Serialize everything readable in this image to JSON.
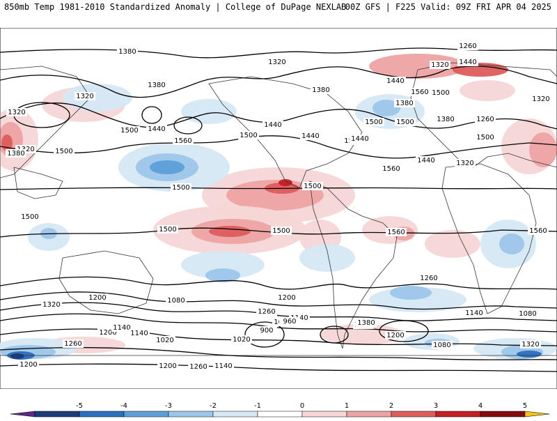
{
  "header": {
    "title_left": "850mb Temp 1981-2010 Standardized Anomaly | College of DuPage NEXLAB",
    "title_right": "00Z GFS | F225 Valid: 09Z FRI APR 04 2025"
  },
  "colorbar": {
    "tick_labels": [
      "-5",
      "-4",
      "-3",
      "-2",
      "-1",
      "0",
      "1",
      "2",
      "3",
      "4",
      "5"
    ],
    "colors": [
      "#5a2a86",
      "#1f3a7a",
      "#2c6fbd",
      "#5d9fd8",
      "#9cc6ea",
      "#d6e8f6",
      "#ffffff",
      "#f7d6d6",
      "#eda3a3",
      "#dd5c5c",
      "#c31f24",
      "#850a0e",
      "#f2c21b"
    ]
  },
  "map": {
    "ocean_color": "#ffffff",
    "land_outline_color": "#333333",
    "contour_color": "#000000",
    "contour_labels": [
      "1380",
      "1320",
      "1260",
      "1380",
      "1440",
      "1320",
      "1320",
      "1380",
      "1500",
      "1440",
      "1560",
      "1440",
      "1500",
      "1320",
      "1440",
      "1380",
      "1500",
      "1440",
      "1320",
      "1560",
      "1500",
      "1380",
      "1500",
      "1320",
      "1500",
      "1560",
      "1500",
      "1500",
      "1500",
      "1500",
      "1500",
      "1560",
      "1560",
      "1500",
      "1440",
      "1500",
      "1380",
      "1260",
      "1440",
      "1320",
      "1200",
      "1320",
      "1260",
      "1140",
      "1200",
      "1260",
      "1080",
      "1020",
      "1080",
      "1200",
      "1140",
      "960",
      "900",
      "1080",
      "1380",
      "1200",
      "1140",
      "1080",
      "1080",
      "1320",
      "1260",
      "1200",
      "1140",
      "1020",
      "1260",
      "1200",
      "1140"
    ]
  }
}
